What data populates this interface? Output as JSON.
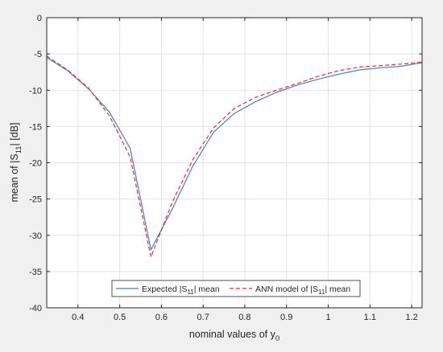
{
  "chart_data": {
    "type": "line",
    "xlabel": "nominal values of y",
    "xlabel_sub": "0",
    "ylabel": "mean of |S",
    "ylabel_sub": "11",
    "ylabel_tail": "| [dB]",
    "xlim": [
      0.325,
      1.225
    ],
    "ylim": [
      -40,
      0
    ],
    "xticks": [
      0.4,
      0.5,
      0.6,
      0.7,
      0.8,
      0.9,
      1,
      1.1,
      1.2
    ],
    "xtick_labels": [
      "0.4",
      "0.5",
      "0.6",
      "0.7",
      "0.8",
      "0.9",
      "1",
      "1.1",
      "1.2"
    ],
    "yticks": [
      0,
      -5,
      -10,
      -15,
      -20,
      -25,
      -30,
      -35,
      -40
    ],
    "ytick_labels": [
      "0",
      "-5",
      "-10",
      "-15",
      "-20",
      "-25",
      "-30",
      "-35",
      "-40"
    ],
    "grid": true,
    "legend_position": "bottom-center",
    "series": [
      {
        "name_prefix": "Expected |S",
        "name_sub": "11",
        "name_suffix": "| mean",
        "color": "#4a7fb0",
        "style": "solid",
        "x": [
          0.325,
          0.375,
          0.425,
          0.475,
          0.525,
          0.575,
          0.625,
          0.675,
          0.725,
          0.775,
          0.825,
          0.875,
          0.925,
          0.975,
          1.025,
          1.075,
          1.125,
          1.175,
          1.225
        ],
        "y": [
          -5.5,
          -7.3,
          -9.8,
          -13.0,
          -18.0,
          -32.0,
          -26.5,
          -20.5,
          -15.8,
          -13.2,
          -11.6,
          -10.3,
          -9.3,
          -8.5,
          -7.8,
          -7.2,
          -6.9,
          -6.7,
          -6.2
        ]
      },
      {
        "name_prefix": "ANN model of |S",
        "name_sub": "11",
        "name_suffix": "| mean",
        "color": "#d9303a",
        "style": "dashed",
        "x": [
          0.325,
          0.375,
          0.425,
          0.475,
          0.525,
          0.575,
          0.625,
          0.675,
          0.725,
          0.775,
          0.825,
          0.875,
          0.925,
          0.975,
          1.025,
          1.075,
          1.125,
          1.175,
          1.225
        ],
        "y": [
          -5.3,
          -7.2,
          -9.7,
          -13.5,
          -19.2,
          -33.0,
          -25.6,
          -19.6,
          -15.2,
          -12.5,
          -11.0,
          -10.0,
          -9.1,
          -8.1,
          -7.3,
          -6.8,
          -6.6,
          -6.4,
          -6.1
        ]
      }
    ]
  }
}
